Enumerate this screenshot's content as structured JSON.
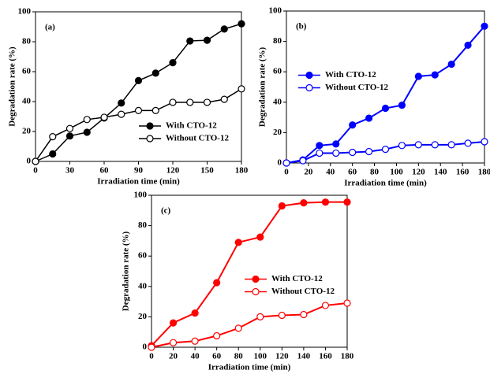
{
  "chart_data": [
    {
      "type": "line",
      "panel_label": "(a)",
      "x_label": "Irradiation time (min)",
      "y_label": "Degradation rate (%)",
      "x": [
        0,
        15,
        30,
        45,
        60,
        75,
        90,
        105,
        120,
        135,
        150,
        165,
        180
      ],
      "series": [
        {
          "name": "With CTO-12",
          "color": "#000000",
          "marker": "filled",
          "values": [
            0,
            5,
            17,
            19.5,
            29,
            39,
            54,
            59,
            66,
            80.5,
            81,
            88.5,
            92
          ]
        },
        {
          "name": "Without CTO-12",
          "color": "#000000",
          "marker": "open",
          "values": [
            0,
            16.5,
            22,
            28,
            29.5,
            31.5,
            34,
            34,
            39.5,
            39.5,
            39.5,
            41.5,
            48.5
          ]
        }
      ],
      "xlim": [
        0,
        180
      ],
      "xticks": [
        0,
        30,
        60,
        90,
        120,
        150,
        180
      ],
      "ylim": [
        0,
        100
      ],
      "yticks": [
        0,
        20,
        40,
        60,
        80,
        100
      ],
      "legend": "lower right"
    },
    {
      "type": "line",
      "panel_label": "(b)",
      "x_label": "Irradiation time (min)",
      "y_label": "Degradation rate (%)",
      "x": [
        0,
        15,
        30,
        45,
        60,
        75,
        90,
        105,
        120,
        135,
        150,
        165,
        180
      ],
      "series": [
        {
          "name": "With CTO-12",
          "color": "#0000ff",
          "marker": "filled",
          "values": [
            0,
            2,
            11.5,
            12.5,
            25,
            29.5,
            36,
            38,
            57,
            58,
            65,
            77.5,
            90
          ]
        },
        {
          "name": "Without CTO-12",
          "color": "#0000ff",
          "marker": "open",
          "values": [
            0,
            1.5,
            6.5,
            6.5,
            7,
            7.5,
            9,
            11.5,
            12,
            12,
            12,
            13,
            14
          ]
        }
      ],
      "xlim": [
        0,
        180
      ],
      "xticks": [
        0,
        20,
        40,
        60,
        80,
        100,
        120,
        140,
        160,
        180
      ],
      "ylim": [
        0,
        100
      ],
      "yticks": [
        0,
        20,
        40,
        60,
        80,
        100
      ],
      "legend": "center left"
    },
    {
      "type": "line",
      "panel_label": "(c)",
      "x_label": "Irradiation time (min)",
      "y_label": "Degradation rate (%)",
      "x": [
        0,
        20,
        40,
        60,
        80,
        100,
        120,
        140,
        160,
        180
      ],
      "series": [
        {
          "name": "With CTO-12",
          "color": "#ff0000",
          "marker": "filled",
          "values": [
            1,
            16,
            22.5,
            42.5,
            69,
            72.5,
            93,
            95,
            95.5,
            95.5
          ]
        },
        {
          "name": "Without CTO-12",
          "color": "#ff0000",
          "marker": "open",
          "values": [
            0,
            3,
            4,
            7.5,
            12.5,
            20,
            21,
            21.5,
            27.5,
            29
          ]
        }
      ],
      "xlim": [
        0,
        180
      ],
      "xticks": [
        0,
        20,
        40,
        60,
        80,
        100,
        120,
        140,
        160,
        180
      ],
      "ylim": [
        0,
        100
      ],
      "yticks": [
        0,
        20,
        40,
        60,
        80,
        100
      ],
      "legend": "center right"
    }
  ]
}
